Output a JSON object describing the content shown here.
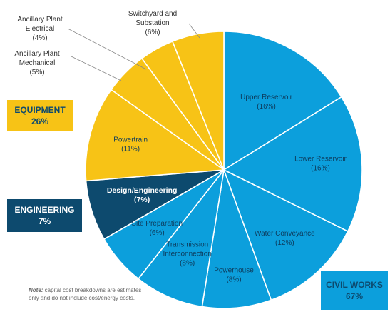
{
  "chart_data": {
    "type": "pie",
    "slices": [
      {
        "label": "Upper Reservoir",
        "value": 16,
        "pct_text": "(16%)",
        "color": "#0c9fdc"
      },
      {
        "label": "Lower Reservoir",
        "value": 16,
        "pct_text": "(16%)",
        "color": "#0c9fdc"
      },
      {
        "label": "Water Conveyance",
        "value": 12,
        "pct_text": "(12%)",
        "color": "#0c9fdc"
      },
      {
        "label": "Powerhouse",
        "value": 8,
        "pct_text": "(8%)",
        "color": "#0c9fdc"
      },
      {
        "label": "Transmission Interconnection",
        "value": 8,
        "pct_text": "(8%)",
        "color": "#0c9fdc"
      },
      {
        "label": "Site Preparation",
        "value": 6,
        "pct_text": "(6%)",
        "color": "#0c9fdc"
      },
      {
        "label": "Design/Engineering",
        "value": 7,
        "pct_text": "(7%)",
        "color": "#0d4a6e"
      },
      {
        "label": "Powertrain",
        "value": 11,
        "pct_text": "(11%)",
        "color": "#f7c316"
      },
      {
        "label": "Ancillary Plant Mechanical",
        "value": 5,
        "pct_text": "(5%)",
        "color": "#f7c316"
      },
      {
        "label": "Ancillary Plant Electrical",
        "value": 4,
        "pct_text": "(4%)",
        "color": "#f7c316"
      },
      {
        "label": "Switchyard and Substation",
        "value": 6,
        "pct_text": "(6%)",
        "color": "#f7c316"
      }
    ],
    "groups": [
      {
        "name": "EQUIPMENT",
        "pct_text": "26%",
        "bg": "#f7c316",
        "fg": "#0d4a6e"
      },
      {
        "name": "ENGINEERING",
        "pct_text": "7%",
        "bg": "#0d4a6e",
        "fg": "#ffffff"
      },
      {
        "name": "CIVIL WORKS",
        "pct_text": "67%",
        "bg": "#0c9fdc",
        "fg": "#0d4a6e"
      }
    ]
  },
  "outside_labels": {
    "electrical": {
      "line1": "Ancillary Plant",
      "line2": "Electrical",
      "line3": "(4%)"
    },
    "mechanical": {
      "line1": "Ancillary Plant",
      "line2": "Mechanical",
      "line3": "(5%)"
    },
    "switchyard": {
      "line1": "Switchyard and",
      "line2": "Substation",
      "line3": "(6%)"
    }
  },
  "note": {
    "prefix": "Note:",
    "text": " capital cost breakdowns are estimates only and do not include cost/energy costs."
  }
}
